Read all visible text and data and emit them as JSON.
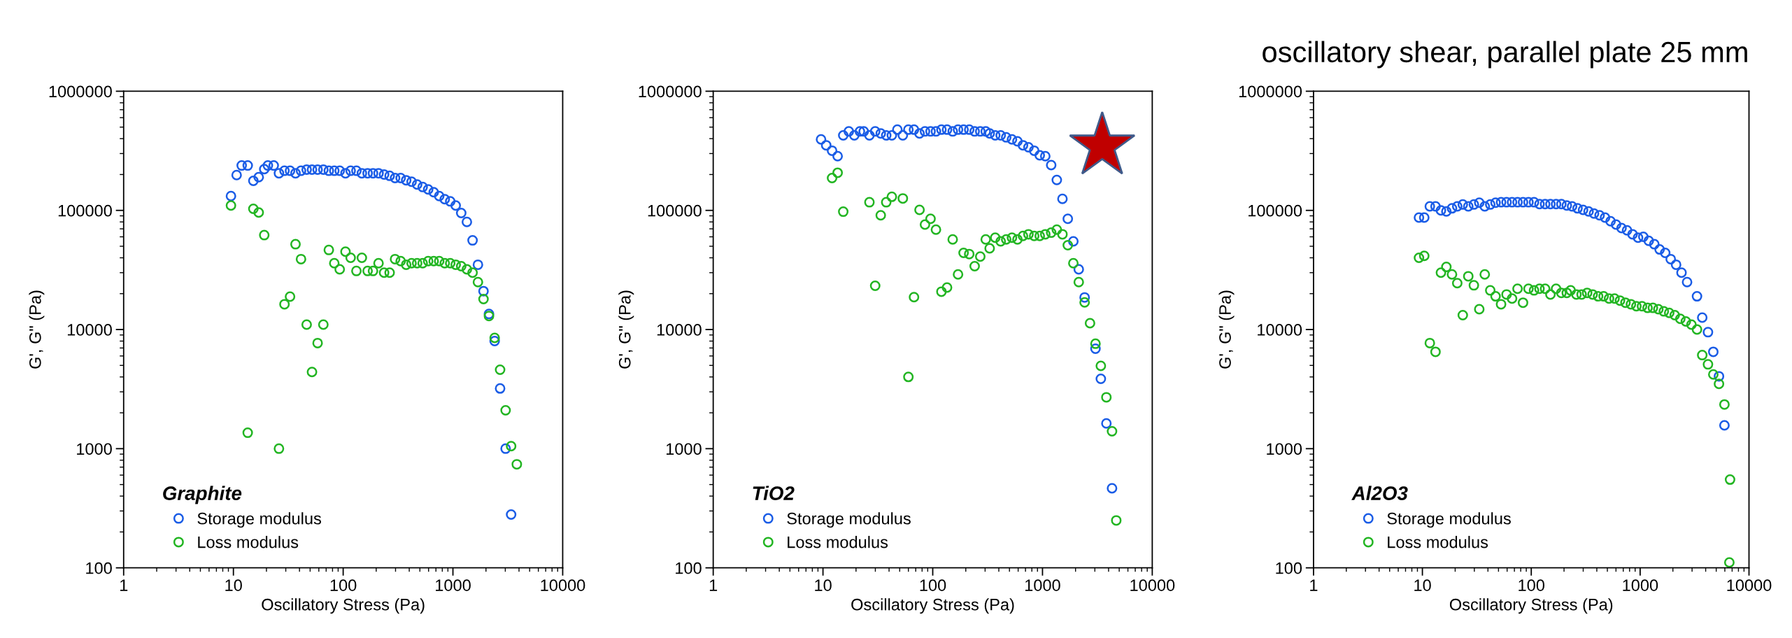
{
  "chart_data": [
    {
      "type": "scatter",
      "xlabel": "Oscillatory Stress (Pa)",
      "ylabel": "G', G\" (Pa)",
      "legend_title": "Graphite",
      "legend": "bottom left",
      "marker": "circle",
      "log": "xy",
      "xlim": [
        1,
        10000
      ],
      "ylim": [
        100,
        1000000
      ],
      "xticks": [
        1,
        10,
        100,
        1000,
        10000
      ],
      "yticks": [
        100,
        1000,
        10000,
        100000,
        1000000
      ],
      "series": [
        {
          "name": "Storage modulus",
          "color": "#1a5ce6",
          "x": [
            9.5,
            10.7,
            11.9,
            13.5,
            15.2,
            17.0,
            19.1,
            20.6,
            23.3,
            26,
            29.2,
            32.8,
            36.8,
            41.3,
            46.5,
            52,
            58.5,
            66,
            74,
            83,
            93,
            105,
            117,
            132,
            148,
            167,
            187,
            210,
            236,
            265,
            297,
            334,
            375,
            420,
            472,
            530,
            595,
            668,
            750,
            842,
            945,
            1060,
            1190,
            1340,
            1510,
            1690,
            1900,
            2130,
            2400,
            2690,
            3020,
            3390
          ],
          "values": [
            132000,
            198000,
            238000,
            238000,
            177000,
            190000,
            222000,
            238000,
            238000,
            205000,
            215000,
            215000,
            205000,
            215000,
            220000,
            220000,
            220000,
            220000,
            215000,
            215000,
            215000,
            205000,
            215000,
            215000,
            205000,
            205000,
            205000,
            205000,
            200000,
            195000,
            187000,
            187000,
            179000,
            174000,
            165000,
            157000,
            150000,
            142000,
            132000,
            124000,
            119000,
            110000,
            95000,
            80000,
            56000,
            35000,
            21000,
            13500,
            8000,
            3200,
            1000,
            280
          ]
        },
        {
          "name": "Loss modulus",
          "color": "#22b522",
          "x": [
            9.5,
            13.5,
            15.2,
            17.0,
            19.1,
            26,
            29.2,
            32.8,
            36.8,
            41.3,
            46.5,
            52,
            58.5,
            66,
            74,
            83,
            93,
            105,
            117,
            132,
            148,
            167,
            187,
            210,
            236,
            265,
            297,
            334,
            375,
            420,
            472,
            530,
            595,
            668,
            750,
            842,
            945,
            1060,
            1190,
            1340,
            1510,
            1690,
            1900,
            2130,
            2400,
            2690,
            3020,
            3390,
            3820
          ],
          "values": [
            110000,
            1360,
            103000,
            96000,
            62000,
            1000,
            16300,
            18900,
            52000,
            39000,
            11000,
            4400,
            7700,
            11000,
            46500,
            36000,
            32000,
            45000,
            40000,
            31000,
            40000,
            31000,
            31000,
            36000,
            30000,
            30000,
            39000,
            37500,
            35000,
            36000,
            36000,
            36000,
            37500,
            37500,
            37500,
            36000,
            36000,
            35000,
            34000,
            32000,
            30000,
            25000,
            18000,
            13000,
            8500,
            4600,
            2100,
            1050,
            740
          ]
        }
      ]
    },
    {
      "type": "scatter",
      "xlabel": "Oscillatory Stress (Pa)",
      "ylabel": "G', G\" (Pa)",
      "legend_title": "TiO2",
      "legend": "bottom left",
      "marker": "circle",
      "log": "xy",
      "xlim": [
        1,
        10000
      ],
      "ylim": [
        100,
        1000000
      ],
      "xticks": [
        1,
        10,
        100,
        1000,
        10000
      ],
      "yticks": [
        100,
        1000,
        10000,
        100000,
        1000000
      ],
      "series": [
        {
          "name": "Storage modulus",
          "color": "#1a5ce6",
          "x": [
            9.6,
            10.7,
            12.1,
            13.6,
            15.3,
            17.2,
            19.3,
            21.7,
            23.5,
            26.5,
            29.9,
            33.6,
            37.7,
            42.4,
            47.6,
            53.4,
            60,
            67.5,
            75.8,
            85,
            95.5,
            107,
            120,
            135,
            152,
            170,
            191,
            215,
            241,
            271,
            304,
            330,
            371,
            416,
            467,
            527,
            591,
            664,
            745,
            840,
            944,
            1060,
            1200,
            1350,
            1520,
            1700,
            1910,
            2140,
            2420,
            3040,
            3400,
            3820,
            4300
          ],
          "values": [
            394000,
            352000,
            317000,
            285000,
            426000,
            460000,
            426000,
            460000,
            460000,
            426000,
            460000,
            442000,
            426000,
            426000,
            476000,
            426000,
            476000,
            476000,
            442000,
            460000,
            460000,
            460000,
            476000,
            476000,
            460000,
            476000,
            476000,
            476000,
            460000,
            460000,
            460000,
            442000,
            426000,
            426000,
            410000,
            394000,
            380000,
            352000,
            339000,
            317000,
            290000,
            285000,
            240000,
            180000,
            125000,
            85000,
            55000,
            32000,
            18600,
            6900,
            3860,
            1630,
            465
          ]
        },
        {
          "name": "Loss modulus",
          "color": "#22b522",
          "x": [
            12.1,
            13.6,
            15.3,
            26.5,
            29.9,
            33.6,
            37.7,
            42.4,
            53.4,
            60,
            67.5,
            75.8,
            85,
            95.5,
            107,
            120,
            135,
            152,
            170,
            191,
            215,
            241,
            271,
            304,
            330,
            371,
            416,
            467,
            527,
            591,
            664,
            745,
            840,
            944,
            1060,
            1200,
            1350,
            1520,
            1700,
            1910,
            2140,
            2420,
            2710,
            3040,
            3400,
            3820,
            4300,
            4700
          ],
          "values": [
            187000,
            207000,
            97500,
            117000,
            23300,
            91000,
            117000,
            130000,
            126000,
            4000,
            18700,
            101000,
            76000,
            85000,
            69000,
            20800,
            22500,
            57000,
            29000,
            44000,
            43000,
            34000,
            41000,
            57000,
            48000,
            59000,
            55000,
            57000,
            59000,
            57000,
            61000,
            63000,
            61000,
            61000,
            63000,
            65000,
            69000,
            63000,
            51000,
            36000,
            25000,
            16900,
            11300,
            7600,
            4950,
            2700,
            1400,
            250
          ]
        }
      ]
    },
    {
      "type": "scatter",
      "title": "oscillatory shear, parallel plate 25 mm",
      "xlabel": "Oscillatory Stress (Pa)",
      "ylabel": "G', G\" (Pa)",
      "legend_title": "Al2O3",
      "legend": "bottom left",
      "marker": "circle",
      "log": "xy",
      "xlim": [
        1,
        10000
      ],
      "ylim": [
        100,
        1000000
      ],
      "xticks": [
        1,
        10,
        100,
        1000,
        10000
      ],
      "yticks": [
        100,
        1000,
        10000,
        100000,
        1000000
      ],
      "series": [
        {
          "name": "Storage modulus",
          "color": "#1a5ce6",
          "x": [
            9.3,
            10.4,
            11.7,
            13.2,
            14.8,
            16.6,
            18.7,
            20.9,
            23.5,
            26.4,
            29.7,
            33.3,
            37.4,
            42,
            47,
            52.8,
            59.3,
            66.6,
            74.8,
            84,
            94.3,
            106,
            119,
            134,
            150,
            169,
            189,
            212,
            237,
            266,
            299,
            336,
            377,
            424,
            476,
            535,
            601,
            675,
            758,
            852,
            957,
            1070,
            1200,
            1350,
            1510,
            1700,
            1910,
            2140,
            2400,
            2700,
            3330,
            3720,
            4200,
            4700,
            5300,
            5950
          ],
          "values": [
            87000,
            87000,
            108000,
            108000,
            100000,
            98000,
            104000,
            108000,
            112000,
            108000,
            112000,
            116000,
            108000,
            112000,
            116000,
            117000,
            117000,
            117000,
            117000,
            117000,
            117000,
            117000,
            113000,
            113000,
            113000,
            113000,
            113000,
            110000,
            108000,
            104000,
            101000,
            98000,
            94000,
            91000,
            87000,
            81000,
            76000,
            71000,
            68000,
            63000,
            59000,
            60000,
            55500,
            52000,
            47000,
            44000,
            39000,
            35000,
            30000,
            25000,
            19000,
            12600,
            9500,
            6500,
            4050,
            1570
          ]
        },
        {
          "name": "Loss modulus",
          "color": "#22b522",
          "x": [
            9.3,
            10.4,
            11.7,
            13.2,
            14.8,
            16.6,
            18.7,
            20.9,
            23.5,
            26.4,
            29.7,
            33.3,
            37.4,
            42,
            47,
            52.8,
            59.3,
            66.6,
            74.8,
            84,
            94.3,
            106,
            119,
            134,
            150,
            169,
            189,
            212,
            230,
            260,
            290,
            326,
            366,
            411,
            462,
            518,
            582,
            653,
            733,
            823,
            924,
            1040,
            1170,
            1310,
            1470,
            1650,
            1850,
            2080,
            2340,
            2630,
            2960,
            3330,
            3720,
            4200,
            4700,
            5300,
            5950,
            6700,
            6600
          ],
          "values": [
            40000,
            41500,
            7700,
            6500,
            30000,
            33500,
            29000,
            24500,
            13200,
            28000,
            23500,
            14800,
            29000,
            21300,
            19000,
            16300,
            19700,
            18200,
            22000,
            16800,
            22000,
            21300,
            22000,
            22000,
            19700,
            22000,
            20300,
            20300,
            21300,
            19700,
            19700,
            20300,
            19700,
            19000,
            19000,
            18200,
            18200,
            17500,
            16800,
            16300,
            15700,
            15700,
            15200,
            15200,
            14800,
            14200,
            13800,
            13200,
            12300,
            11700,
            11000,
            10000,
            6100,
            5100,
            4200,
            3500,
            2350,
            550,
            111
          ]
        }
      ]
    }
  ]
}
